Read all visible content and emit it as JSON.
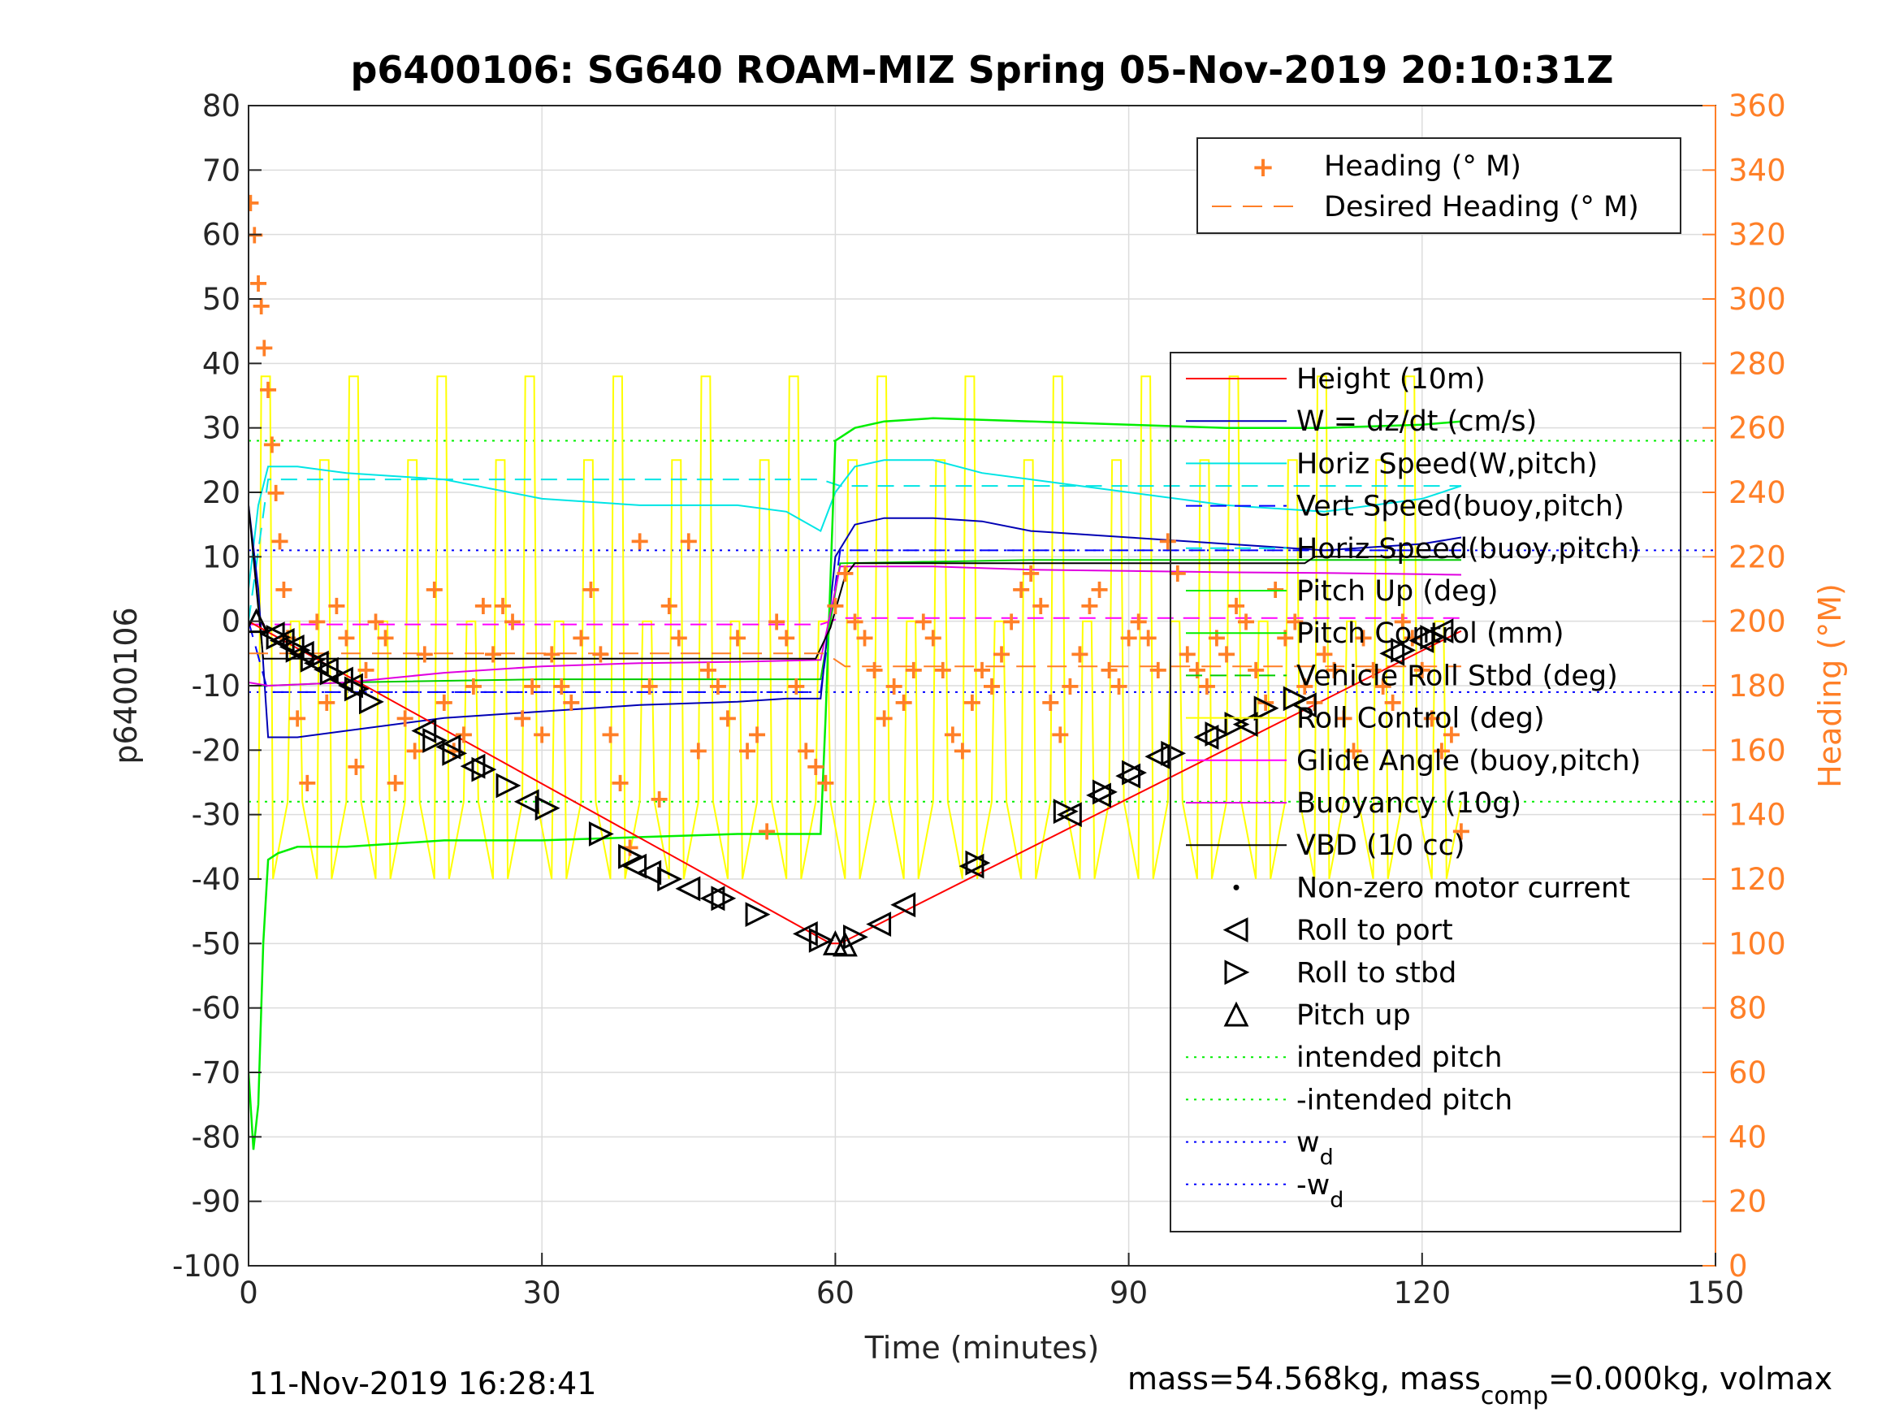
{
  "figure": {
    "title": "p6400106: SG640 ROAM-MIZ Spring 05-Nov-2019 20:10:31Z",
    "footer_left": "11-Nov-2019 16:28:41",
    "footer_right": "mass=54.568kg, mass",
    "footer_right_sub": "comp",
    "footer_right_tail": "=0.000kg, volmax"
  },
  "colors": {
    "height": "#ff0000",
    "w": "#0000b4",
    "horiz_speed": "#00e5e5",
    "vert_speed": "#0000ff",
    "horiz_speed_buoy": "#00e5e5",
    "pitch_up": "#00ee00",
    "pitch_control": "#ffff00",
    "vehicle_roll": "#00cc00",
    "roll_control": "#ffff00",
    "glide_angle": "#ff00ff",
    "buoyancy": "#e000e0",
    "vbd": "#000000",
    "heading": "#ff7f27",
    "right_axis": "#ff7f27"
  },
  "chart_data": {
    "type": "line",
    "title": "p6400106: SG640 ROAM-MIZ Spring 05-Nov-2019 20:10:31Z",
    "xlabel": "Time (minutes)",
    "ylabel": "p6400106",
    "y2label": "Heading (°M)",
    "xlim": [
      0,
      150
    ],
    "ylim": [
      -100,
      80
    ],
    "y2lim": [
      0,
      360
    ],
    "xticks": [
      0,
      30,
      60,
      90,
      120,
      150
    ],
    "yticks": [
      -100,
      -90,
      -80,
      -70,
      -60,
      -50,
      -40,
      -30,
      -20,
      -10,
      0,
      10,
      20,
      30,
      40,
      50,
      60,
      70,
      80
    ],
    "y2ticks": [
      0,
      20,
      40,
      60,
      80,
      100,
      120,
      140,
      160,
      180,
      200,
      220,
      240,
      260,
      280,
      300,
      320,
      340,
      360
    ],
    "grid": true,
    "legend_top": {
      "placement": "top-right",
      "entries": [
        "Heading (° M)",
        "Desired Heading (° M)"
      ]
    },
    "legend_main": {
      "placement": "right",
      "entries": [
        "Height (10m)",
        "W = dz/dt (cm/s)",
        "Horiz Speed(W,pitch)",
        "Vert Speed(buoy,pitch)",
        "Horiz Speed(buoy,pitch)",
        "Pitch Up (deg)",
        "Pitch Control (mm)",
        "Vehicle Roll Stbd (deg)",
        "Roll Control (deg)",
        "Glide Angle (buoy,pitch)",
        "Buoyancy (10g)",
        "VBD (10 cc)",
        "Non-zero motor current",
        "Roll to port",
        "Roll to stbd",
        "Pitch up",
        "intended pitch",
        "-intended pitch",
        "w",
        "-w"
      ],
      "w_sub": "d"
    },
    "reference_lines": {
      "intended_pitch": 28,
      "neg_intended_pitch": -28,
      "w_d": 11,
      "neg_w_d": -11
    },
    "series": [
      {
        "name": "Height (10m)",
        "x": [
          0,
          59.5,
          60.5,
          124
        ],
        "values": [
          0,
          -50,
          -50,
          -1.5
        ]
      },
      {
        "name": "W = dz/dt (cm/s)",
        "x": [
          0,
          1,
          2,
          5,
          10,
          20,
          30,
          40,
          50,
          55,
          58.5,
          60,
          62,
          65,
          70,
          75,
          80,
          90,
          100,
          110,
          120,
          124
        ],
        "values": [
          18,
          5,
          -18,
          -18,
          -17,
          -15,
          -14,
          -13,
          -12.5,
          -12,
          -12,
          10,
          15,
          16,
          16,
          15.5,
          14,
          13,
          12,
          11,
          12,
          13
        ]
      },
      {
        "name": "Horiz Speed(W,pitch)",
        "x": [
          0,
          1,
          2,
          5,
          10,
          20,
          30,
          40,
          50,
          55,
          58.5,
          60,
          62,
          65,
          70,
          75,
          80,
          90,
          100,
          110,
          120,
          124
        ],
        "values": [
          5,
          18,
          24,
          24,
          23,
          22,
          19,
          18,
          18,
          17,
          14,
          20,
          24,
          25,
          25,
          23,
          22,
          20,
          18,
          17,
          19,
          21
        ]
      },
      {
        "name": "Vert Speed(buoy,pitch)",
        "x": [
          0,
          2,
          10,
          30,
          58.5,
          60.5,
          70,
          90,
          110,
          124
        ],
        "values": [
          0,
          -11,
          -11,
          -11,
          -11,
          11,
          11,
          11,
          11,
          11
        ]
      },
      {
        "name": "Horiz Speed(buoy,pitch)",
        "x": [
          0,
          2,
          10,
          30,
          58.5,
          60.5,
          70,
          90,
          110,
          124
        ],
        "values": [
          0,
          22,
          22,
          22,
          22,
          21,
          21,
          21,
          21,
          21
        ]
      },
      {
        "name": "Pitch Up (deg)",
        "x": [
          0,
          0.5,
          1,
          1.5,
          2,
          3,
          5,
          10,
          20,
          30,
          40,
          50,
          58.5,
          59,
          60,
          62,
          65,
          70,
          80,
          90,
          100,
          110,
          120,
          124
        ],
        "values": [
          -70,
          -82,
          -75,
          -50,
          -37,
          -36,
          -35,
          -35,
          -34,
          -34,
          -33.5,
          -33,
          -33,
          -15,
          28,
          30,
          31,
          31.5,
          31,
          30.5,
          30,
          30,
          30.5,
          31
        ]
      },
      {
        "name": "Vehicle Roll Stbd (deg)",
        "x": [
          0,
          2,
          10,
          30,
          58.5,
          60.5,
          80,
          100,
          124
        ],
        "values": [
          -10,
          -10,
          -9.5,
          -9,
          -9,
          9,
          9.5,
          9.5,
          9.5
        ]
      },
      {
        "name": "Glide Angle (buoy,pitch)",
        "x": [
          0,
          58.5,
          60.5,
          124
        ],
        "values": [
          -0.5,
          -0.5,
          0.5,
          0.5
        ]
      },
      {
        "name": "Buoyancy (10g)",
        "x": [
          0,
          2,
          10,
          20,
          30,
          40,
          50,
          58.5,
          60.5,
          70,
          80,
          90,
          100,
          110,
          120,
          124
        ],
        "values": [
          -9.5,
          -10,
          -9.5,
          -8,
          -7,
          -6.5,
          -6.3,
          -6,
          8.5,
          8.5,
          8,
          7.8,
          7.6,
          7.5,
          7.3,
          7.2
        ]
      },
      {
        "name": "VBD (10 cc)",
        "x": [
          0,
          1,
          1.5,
          5,
          20,
          40,
          58,
          59.5,
          61,
          62,
          80,
          100,
          108,
          109,
          124
        ],
        "values": [
          18,
          2,
          -5.8,
          -5.8,
          -5.8,
          -5.8,
          -5.8,
          -1,
          7,
          9,
          9,
          9,
          9,
          10,
          10
        ]
      },
      {
        "name": "Heading (° M)",
        "axis": "right",
        "x": [
          0.2,
          0.6,
          1,
          1.3,
          1.6,
          2,
          2.4,
          2.8,
          3.2,
          3.6,
          4,
          5,
          6,
          7,
          8,
          9,
          10,
          11,
          12,
          13,
          14,
          15,
          16,
          17,
          18,
          19,
          20,
          21,
          22,
          23,
          24,
          25,
          26,
          27,
          28,
          29,
          30,
          31,
          32,
          33,
          34,
          35,
          36,
          37,
          38,
          39,
          40,
          41,
          42,
          43,
          44,
          45,
          46,
          47,
          48,
          49,
          50,
          51,
          52,
          53,
          54,
          55,
          56,
          57,
          58,
          59,
          60,
          61,
          62,
          63,
          64,
          65,
          66,
          67,
          68,
          69,
          70,
          71,
          72,
          73,
          74,
          75,
          76,
          77,
          78,
          79,
          80,
          81,
          82,
          83,
          84,
          85,
          86,
          87,
          88,
          89,
          90,
          91,
          92,
          93,
          94,
          95,
          96,
          97,
          98,
          99,
          100,
          101,
          102,
          103,
          104,
          105,
          106,
          107,
          108,
          109,
          110,
          111,
          112,
          113,
          114,
          115,
          116,
          117,
          118,
          119,
          120,
          121,
          122,
          123,
          124
        ],
        "values": [
          330,
          320,
          305,
          298,
          285,
          272,
          255,
          240,
          225,
          210,
          195,
          170,
          150,
          200,
          175,
          205,
          195,
          155,
          185,
          200,
          195,
          150,
          170,
          160,
          190,
          210,
          175,
          160,
          165,
          180,
          205,
          190,
          205,
          200,
          170,
          180,
          165,
          190,
          180,
          175,
          195,
          210,
          190,
          165,
          150,
          130,
          225,
          180,
          145,
          205,
          195,
          225,
          160,
          185,
          180,
          170,
          195,
          160,
          165,
          135,
          200,
          195,
          180,
          160,
          155,
          150,
          205,
          215,
          200,
          195,
          185,
          170,
          180,
          175,
          185,
          200,
          195,
          185,
          165,
          160,
          175,
          185,
          180,
          190,
          200,
          210,
          215,
          205,
          175,
          165,
          180,
          190,
          205,
          210,
          185,
          180,
          195,
          200,
          195,
          185,
          225,
          215,
          190,
          185,
          180,
          195,
          190,
          205,
          200,
          185,
          175,
          210,
          195,
          200,
          180,
          175,
          190,
          185,
          170,
          160,
          195,
          185,
          180,
          175,
          200,
          195,
          185,
          170,
          160,
          165,
          135
        ]
      },
      {
        "name": "Desired Heading (° M)",
        "axis": "right",
        "x": [
          0,
          59,
          61,
          124
        ],
        "values": [
          190,
          190,
          186,
          186
        ]
      }
    ],
    "markers": {
      "pitch_up": [
        [
          0.8,
          0
        ],
        [
          60,
          -50
        ],
        [
          61,
          -50.2
        ]
      ],
      "roll_to_port": [
        [
          2.5,
          -2
        ],
        [
          3.5,
          -3
        ],
        [
          4.5,
          -4
        ],
        [
          5.5,
          -5
        ],
        [
          7,
          -6.5
        ],
        [
          8,
          -7.5
        ],
        [
          9.5,
          -9
        ],
        [
          10.5,
          -10
        ],
        [
          18,
          -17
        ],
        [
          20.5,
          -19.5
        ],
        [
          23,
          -22.5
        ],
        [
          28.5,
          -28
        ],
        [
          39.5,
          -38
        ],
        [
          41,
          -39
        ],
        [
          45,
          -41.5
        ],
        [
          47.5,
          -43
        ],
        [
          57,
          -48.5
        ],
        [
          64.5,
          -47
        ],
        [
          67,
          -44
        ],
        [
          74,
          -38
        ],
        [
          84,
          -30
        ],
        [
          87,
          -27
        ],
        [
          90,
          -24
        ],
        [
          93,
          -21
        ],
        [
          98,
          -18
        ],
        [
          102,
          -16
        ],
        [
          108,
          -13
        ],
        [
          117,
          -5
        ],
        [
          120,
          -3
        ],
        [
          122,
          -1.5
        ]
      ],
      "roll_to_stbd": [
        [
          3,
          -2.5
        ],
        [
          5,
          -4.5
        ],
        [
          6.5,
          -6
        ],
        [
          8.5,
          -8
        ],
        [
          11,
          -10.5
        ],
        [
          12.5,
          -12.5
        ],
        [
          19,
          -18.5
        ],
        [
          21,
          -20.5
        ],
        [
          24,
          -23
        ],
        [
          26.5,
          -25.5
        ],
        [
          30.5,
          -29
        ],
        [
          36,
          -33
        ],
        [
          39,
          -36.5
        ],
        [
          43,
          -40
        ],
        [
          48.5,
          -43
        ],
        [
          52,
          -45.5
        ],
        [
          58.5,
          -49.5
        ],
        [
          62,
          -49
        ],
        [
          74.5,
          -37.5
        ],
        [
          83.5,
          -29.5
        ],
        [
          87.5,
          -26.5
        ],
        [
          90.5,
          -23.5
        ],
        [
          94.5,
          -20.5
        ],
        [
          99,
          -17.5
        ],
        [
          101,
          -16
        ],
        [
          104,
          -13.5
        ],
        [
          107,
          -12
        ],
        [
          118,
          -4.5
        ],
        [
          121,
          -2.5
        ]
      ]
    }
  }
}
